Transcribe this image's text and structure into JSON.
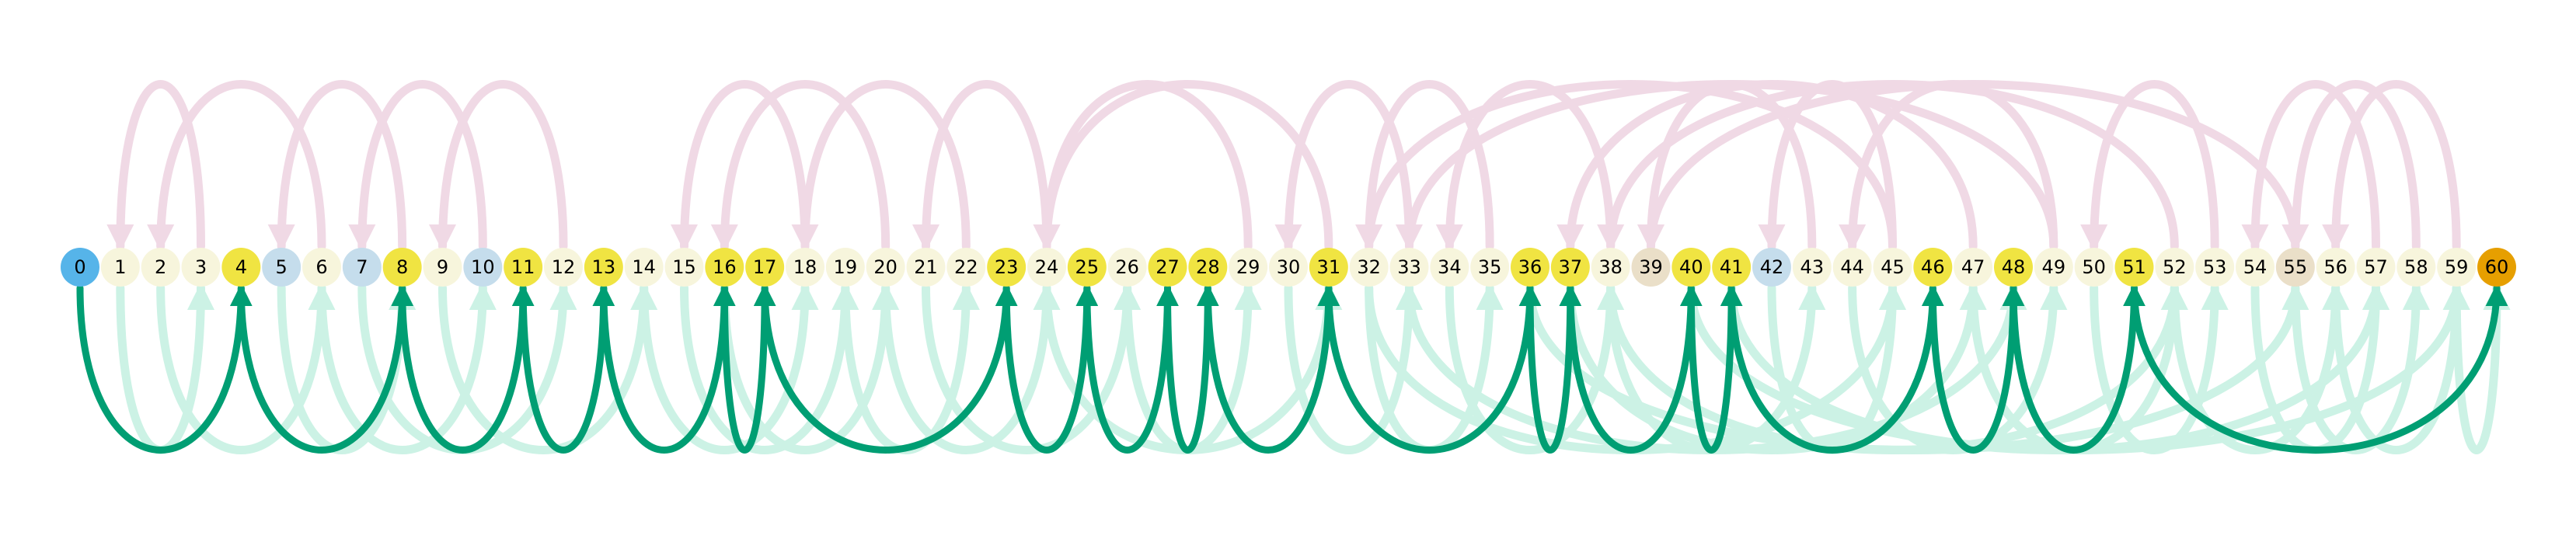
{
  "chart_data": {
    "type": "arc-diagram",
    "nodes": [
      {
        "label": "0",
        "color": "#56B4E9"
      },
      {
        "label": "1",
        "color": "#F7F5DC"
      },
      {
        "label": "2",
        "color": "#F7F5DC"
      },
      {
        "label": "3",
        "color": "#F7F5DC"
      },
      {
        "label": "4",
        "color": "#F0E442"
      },
      {
        "label": "5",
        "color": "#C5DDEC"
      },
      {
        "label": "6",
        "color": "#F7F5DC"
      },
      {
        "label": "7",
        "color": "#C5DDEC"
      },
      {
        "label": "8",
        "color": "#F0E442"
      },
      {
        "label": "9",
        "color": "#F7F5DC"
      },
      {
        "label": "10",
        "color": "#C5DDEC"
      },
      {
        "label": "11",
        "color": "#F0E442"
      },
      {
        "label": "12",
        "color": "#F7F5DC"
      },
      {
        "label": "13",
        "color": "#F0E442"
      },
      {
        "label": "14",
        "color": "#F7F5DC"
      },
      {
        "label": "15",
        "color": "#F7F5DC"
      },
      {
        "label": "16",
        "color": "#F0E442"
      },
      {
        "label": "17",
        "color": "#F0E442"
      },
      {
        "label": "18",
        "color": "#F7F5DC"
      },
      {
        "label": "19",
        "color": "#F7F5DC"
      },
      {
        "label": "20",
        "color": "#F7F5DC"
      },
      {
        "label": "21",
        "color": "#F7F5DC"
      },
      {
        "label": "22",
        "color": "#F7F5DC"
      },
      {
        "label": "23",
        "color": "#F0E442"
      },
      {
        "label": "24",
        "color": "#F7F5DC"
      },
      {
        "label": "25",
        "color": "#F0E442"
      },
      {
        "label": "26",
        "color": "#F7F5DC"
      },
      {
        "label": "27",
        "color": "#F0E442"
      },
      {
        "label": "28",
        "color": "#F0E442"
      },
      {
        "label": "29",
        "color": "#F7F5DC"
      },
      {
        "label": "30",
        "color": "#F7F5DC"
      },
      {
        "label": "31",
        "color": "#F0E442"
      },
      {
        "label": "32",
        "color": "#F7F5DC"
      },
      {
        "label": "33",
        "color": "#F7F5DC"
      },
      {
        "label": "34",
        "color": "#F7F5DC"
      },
      {
        "label": "35",
        "color": "#F7F5DC"
      },
      {
        "label": "36",
        "color": "#F0E442"
      },
      {
        "label": "37",
        "color": "#F0E442"
      },
      {
        "label": "38",
        "color": "#F7F5DC"
      },
      {
        "label": "39",
        "color": "#EADFC8"
      },
      {
        "label": "40",
        "color": "#F0E442"
      },
      {
        "label": "41",
        "color": "#F0E442"
      },
      {
        "label": "42",
        "color": "#C5DDEC"
      },
      {
        "label": "43",
        "color": "#F7F5DC"
      },
      {
        "label": "44",
        "color": "#F7F5DC"
      },
      {
        "label": "45",
        "color": "#F7F5DC"
      },
      {
        "label": "46",
        "color": "#F0E442"
      },
      {
        "label": "47",
        "color": "#F7F5DC"
      },
      {
        "label": "48",
        "color": "#F0E442"
      },
      {
        "label": "49",
        "color": "#F7F5DC"
      },
      {
        "label": "50",
        "color": "#F7F5DC"
      },
      {
        "label": "51",
        "color": "#F0E442"
      },
      {
        "label": "52",
        "color": "#F7F5DC"
      },
      {
        "label": "53",
        "color": "#F7F5DC"
      },
      {
        "label": "54",
        "color": "#F7F5DC"
      },
      {
        "label": "55",
        "color": "#EADFC8"
      },
      {
        "label": "56",
        "color": "#F7F5DC"
      },
      {
        "label": "57",
        "color": "#F7F5DC"
      },
      {
        "label": "58",
        "color": "#F7F5DC"
      },
      {
        "label": "59",
        "color": "#F7F5DC"
      },
      {
        "label": "60",
        "color": "#E69F00"
      }
    ],
    "colors": {
      "forward_strong": "#009E73",
      "forward_faint": "#CCF2E5",
      "backward_strong": "#CC79A7",
      "backward_faint": "#F0D9E5"
    },
    "highlighted_path": [
      {
        "from": 0,
        "to": 4
      },
      {
        "from": 4,
        "to": 8
      },
      {
        "from": 8,
        "to": 11
      },
      {
        "from": 11,
        "to": 13
      },
      {
        "from": 13,
        "to": 16
      },
      {
        "from": 16,
        "to": 17
      },
      {
        "from": 17,
        "to": 23
      },
      {
        "from": 23,
        "to": 25
      },
      {
        "from": 25,
        "to": 27
      },
      {
        "from": 27,
        "to": 28
      },
      {
        "from": 28,
        "to": 31
      },
      {
        "from": 31,
        "to": 36
      },
      {
        "from": 36,
        "to": 37
      },
      {
        "from": 37,
        "to": 40
      },
      {
        "from": 40,
        "to": 41
      },
      {
        "from": 41,
        "to": 46
      },
      {
        "from": 46,
        "to": 48
      },
      {
        "from": 48,
        "to": 51
      },
      {
        "from": 51,
        "to": 60
      }
    ],
    "faint_edges": [
      {
        "from": 1,
        "to": 3
      },
      {
        "from": 3,
        "to": 1
      },
      {
        "from": 2,
        "to": 6
      },
      {
        "from": 6,
        "to": 2
      },
      {
        "from": 6,
        "to": 10
      },
      {
        "from": 7,
        "to": 12
      },
      {
        "from": 10,
        "to": 7
      },
      {
        "from": 12,
        "to": 9
      },
      {
        "from": 9,
        "to": 14
      },
      {
        "from": 14,
        "to": 18
      },
      {
        "from": 18,
        "to": 15
      },
      {
        "from": 15,
        "to": 19
      },
      {
        "from": 19,
        "to": 22
      },
      {
        "from": 22,
        "to": 18
      },
      {
        "from": 20,
        "to": 24
      },
      {
        "from": 24,
        "to": 21
      },
      {
        "from": 21,
        "to": 26
      },
      {
        "from": 26,
        "to": 29
      },
      {
        "from": 29,
        "to": 24
      },
      {
        "from": 30,
        "to": 33
      },
      {
        "from": 33,
        "to": 30
      },
      {
        "from": 32,
        "to": 35
      },
      {
        "from": 35,
        "to": 32
      },
      {
        "from": 34,
        "to": 38
      },
      {
        "from": 38,
        "to": 34
      },
      {
        "from": 38,
        "to": 43
      },
      {
        "from": 43,
        "to": 39
      },
      {
        "from": 42,
        "to": 45
      },
      {
        "from": 45,
        "to": 42
      },
      {
        "from": 44,
        "to": 49
      },
      {
        "from": 49,
        "to": 44
      },
      {
        "from": 47,
        "to": 52
      },
      {
        "from": 50,
        "to": 53
      },
      {
        "from": 53,
        "to": 50
      },
      {
        "from": 52,
        "to": 56
      },
      {
        "from": 54,
        "to": 57
      },
      {
        "from": 57,
        "to": 54
      },
      {
        "from": 55,
        "to": 58
      },
      {
        "from": 58,
        "to": 55
      },
      {
        "from": 56,
        "to": 59
      },
      {
        "from": 59,
        "to": 56
      },
      {
        "from": 59,
        "to": 60
      },
      {
        "from": 5,
        "to": 8
      },
      {
        "from": 8,
        "to": 5
      },
      {
        "from": 16,
        "to": 20
      },
      {
        "from": 20,
        "to": 16
      },
      {
        "from": 24,
        "to": 31
      },
      {
        "from": 31,
        "to": 24
      },
      {
        "from": 37,
        "to": 47
      },
      {
        "from": 47,
        "to": 37
      },
      {
        "from": 36,
        "to": 55
      },
      {
        "from": 55,
        "to": 39
      },
      {
        "from": 38,
        "to": 52
      },
      {
        "from": 52,
        "to": 38
      },
      {
        "from": 40,
        "to": 59
      },
      {
        "from": 32,
        "to": 45
      },
      {
        "from": 45,
        "to": 32
      },
      {
        "from": 41,
        "to": 57
      },
      {
        "from": 33,
        "to": 48
      },
      {
        "from": 49,
        "to": 33
      }
    ]
  }
}
